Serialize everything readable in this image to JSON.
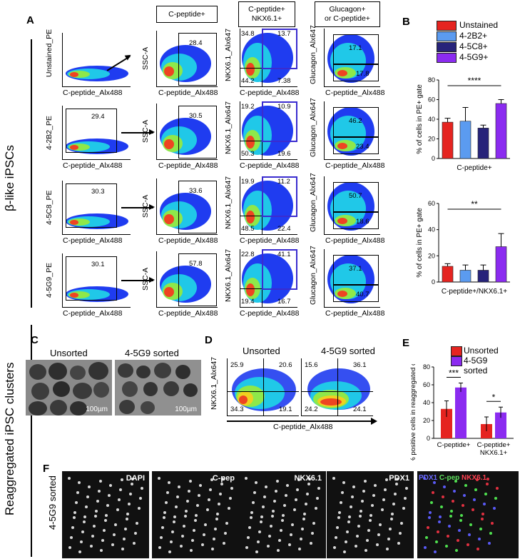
{
  "panels": {
    "A": "A",
    "B": "B",
    "C": "C",
    "D": "D",
    "E": "E",
    "F": "F"
  },
  "side_labels": {
    "top": "β-like iPSCs",
    "bottom": "Reaggregated iPSC clusters"
  },
  "column_headers": {
    "col2": "C-peptide+",
    "col3a": "C-peptide+",
    "col3b": "NKX6.1+",
    "col4a": "Glucagon+",
    "col4b": "or C-peptide+"
  },
  "flow_rows": [
    {
      "ylabel": "Unstained_PE",
      "xlabel": "C-peptide_Alx488",
      "gate": "",
      "ssc": "28.4",
      "nkx": [
        "34.8",
        "13.7",
        "44.2",
        "7.38"
      ],
      "gcg": [
        "17.1",
        "17.8"
      ]
    },
    {
      "ylabel": "4-2B2_PE",
      "xlabel": "C-peptide_Alx488",
      "gate": "29.4",
      "ssc": "30.5",
      "nkx": [
        "19.2",
        "10.9",
        "50.3",
        "19.6"
      ],
      "gcg": [
        "46.2",
        "23.4"
      ]
    },
    {
      "ylabel": "4-5C8_PE",
      "xlabel": "C-peptide_Alx488",
      "gate": "30.3",
      "ssc": "33.6",
      "nkx": [
        "19.9",
        "11.2",
        "48.5",
        "22.4"
      ],
      "gcg": [
        "50.7",
        "18.6"
      ]
    },
    {
      "ylabel": "4-5G9_PE",
      "xlabel": "C-peptide_Alx488",
      "gate": "30.1",
      "ssc": "57.8",
      "nkx": [
        "22.8",
        "41.1",
        "19.4",
        "16.7"
      ],
      "gcg": [
        "37.1",
        "40.7"
      ]
    }
  ],
  "axis_names": {
    "ssc": "SSC-A",
    "xcp": "C-peptide_Alx488",
    "nkx": "NKX6.1_Alx647",
    "gcg": "Glucagon_Alx647"
  },
  "legend_B": [
    {
      "label": "Unstained",
      "color": "#e52420"
    },
    {
      "label": "4-2B2+",
      "color": "#5b9bf0"
    },
    {
      "label": "4-5C8+",
      "color": "#27237a"
    },
    {
      "label": "4-5G9+",
      "color": "#8b2bf0"
    }
  ],
  "chart_data": [
    {
      "type": "bar",
      "title": "",
      "ylabel": "% of cells in PE+ gate",
      "xlabel": "C-peptide+",
      "ylim": [
        0,
        80
      ],
      "yticks": [
        "0",
        "20",
        "40",
        "60",
        "80"
      ],
      "categories": [
        "Unstained",
        "4-2B2+",
        "4-5C8+",
        "4-5G9+"
      ],
      "values": [
        37,
        38,
        31,
        56
      ],
      "errors": [
        4,
        14,
        3,
        4
      ],
      "significance": "****"
    },
    {
      "type": "bar",
      "title": "",
      "ylabel": "% of cells in PE+ gate",
      "xlabel": "C-peptide+/NKX6.1+",
      "ylim": [
        0,
        60
      ],
      "yticks": [
        "0",
        "20",
        "40",
        "60"
      ],
      "categories": [
        "Unstained",
        "4-2B2+",
        "4-5C8+",
        "4-5G9+"
      ],
      "values": [
        12,
        9,
        9,
        27
      ],
      "errors": [
        2,
        4,
        4,
        10
      ],
      "significance": "**"
    },
    {
      "type": "bar",
      "title": "",
      "ylabel": "% positive cells in reaggregated clusters",
      "ylim": [
        0,
        80
      ],
      "yticks": [
        "0",
        "20",
        "40",
        "60",
        "80"
      ],
      "categories": [
        "C-peptide+",
        "C-peptide+ NKX6.1+"
      ],
      "series": [
        {
          "name": "Unsorted",
          "values": [
            33,
            16
          ],
          "errors": [
            9,
            8
          ]
        },
        {
          "name": "4-5G9 sorted",
          "values": [
            57,
            29
          ],
          "errors": [
            5,
            6
          ]
        }
      ],
      "significance": [
        "***",
        "*"
      ]
    }
  ],
  "panel_C": {
    "left": "Unsorted",
    "right": "4-5G9 sorted",
    "scale": "100µm"
  },
  "panel_D": {
    "left": "Unsorted",
    "right": "4-5G9 sorted",
    "ylabel": "NKX6.1_Alx647",
    "xlabel": "C-peptide_Alx488",
    "left_q": [
      "25.9",
      "20.6",
      "34.3",
      "19.1"
    ],
    "right_q": [
      "15.6",
      "36.1",
      "24.2",
      "24.1"
    ]
  },
  "legend_E": [
    {
      "label": "Unsorted",
      "color": "#e52420"
    },
    {
      "label": "4-5G9",
      "color": "#8b2bf0"
    },
    {
      "label": "sorted",
      "color": ""
    }
  ],
  "panel_F": {
    "side": "4-5G9 sorted",
    "channels": [
      "DAPI",
      "C-pep",
      "NKX6.1",
      "PDX1"
    ],
    "merge": [
      "PDX1",
      "C-pep",
      "NKX6.1"
    ]
  }
}
